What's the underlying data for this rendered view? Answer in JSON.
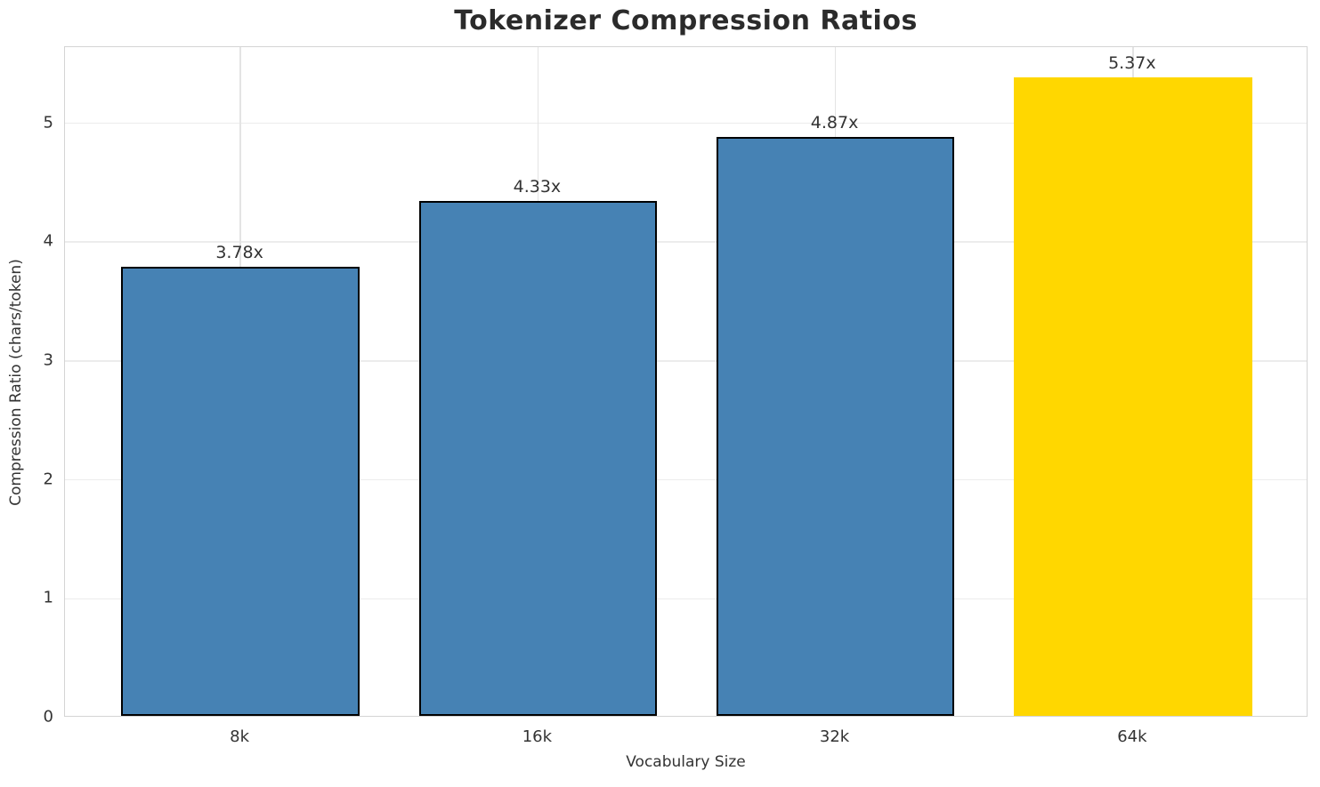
{
  "chart_data": {
    "type": "bar",
    "title": "Tokenizer Compression Ratios",
    "xlabel": "Vocabulary Size",
    "ylabel": "Compression Ratio (chars/token)",
    "categories": [
      "8k",
      "16k",
      "32k",
      "64k"
    ],
    "values": [
      3.78,
      4.33,
      4.87,
      5.37
    ],
    "bar_labels": [
      "3.78x",
      "4.33x",
      "4.87x",
      "5.37x"
    ],
    "bar_colors": [
      "#4682B4",
      "#4682B4",
      "#4682B4",
      "#FFD700"
    ],
    "bar_edge_colors": [
      "#000000",
      "#000000",
      "#000000",
      "none"
    ],
    "yticks": [
      "0",
      "1",
      "2",
      "3",
      "4",
      "5"
    ],
    "ylim": [
      0,
      5.64
    ],
    "grid": true,
    "legend": "none",
    "grid_color": "#ececec",
    "spine_color": "#d4d4d4",
    "text_color": "#333333"
  }
}
